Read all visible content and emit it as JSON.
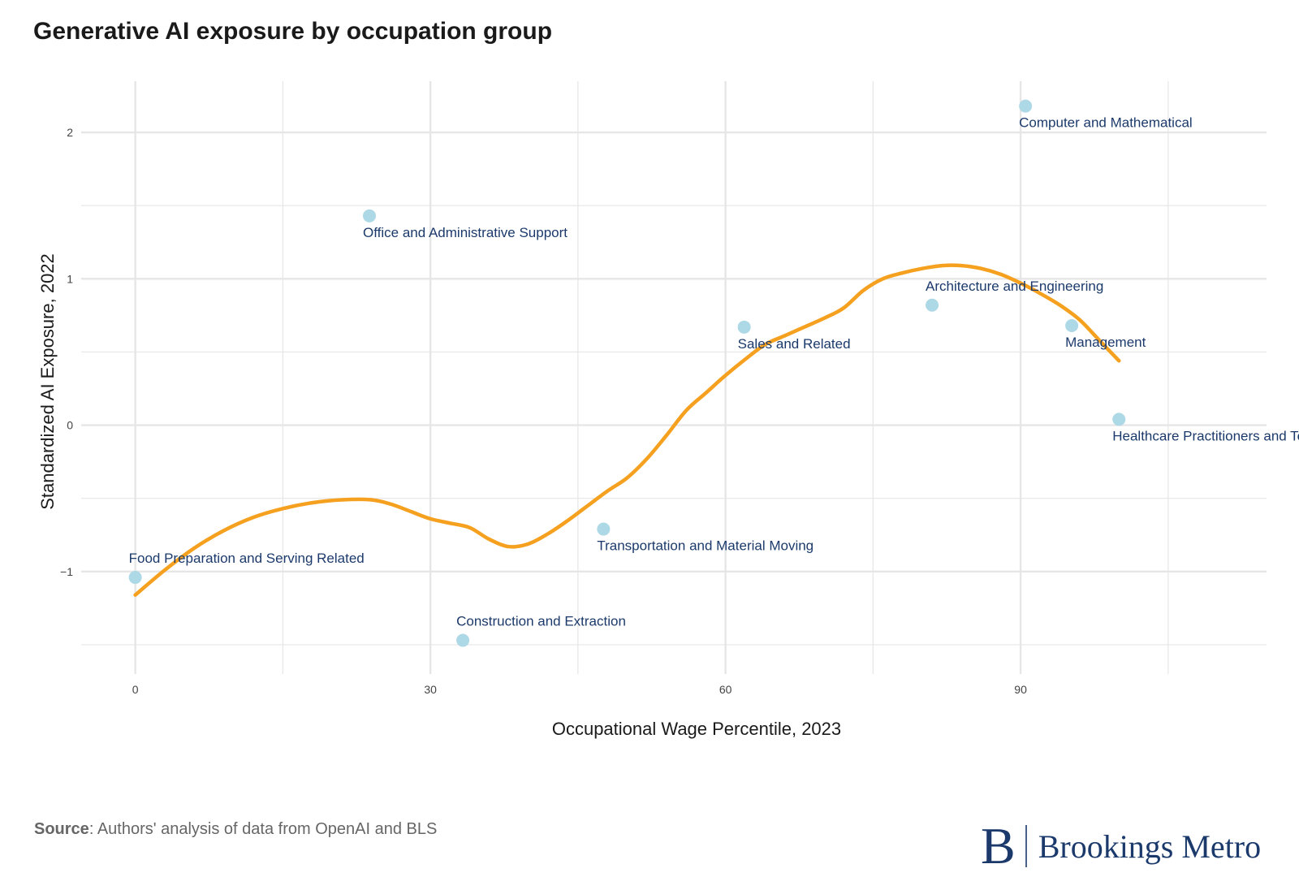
{
  "title": "Generative AI exposure by occupation group",
  "source_label": "Source",
  "source_text": ": Authors' analysis of data from OpenAI and BLS",
  "logo": {
    "mark": "B",
    "text": "Brookings Metro"
  },
  "colors": {
    "point": "#add8e6",
    "trend": "#f5a01e",
    "label": "#1b3a6b",
    "grid": "#e6e6e6",
    "tick": "#444444"
  },
  "chart_data": {
    "type": "scatter",
    "xlabel": "Occupational Wage Percentile, 2023",
    "ylabel": "Standardized AI Exposure, 2022",
    "xlim": [
      -5.5,
      115
    ],
    "ylim": [
      -1.7,
      2.35
    ],
    "xticks": [
      0,
      30,
      60,
      90
    ],
    "xtick_labels": [
      "0",
      "30",
      "60",
      "90"
    ],
    "yticks": [
      -1,
      0,
      1,
      2
    ],
    "ytick_labels": [
      "−1",
      "0",
      "1",
      "2"
    ],
    "grid": true,
    "points": [
      {
        "name": "Food Preparation and Serving Related",
        "x": 0,
        "y": -1.04
      },
      {
        "name": "Office and Administrative Support",
        "x": 23.8,
        "y": 1.43
      },
      {
        "name": "Construction and Extraction",
        "x": 33.3,
        "y": -1.47
      },
      {
        "name": "Transportation and Material Moving",
        "x": 47.6,
        "y": -0.71
      },
      {
        "name": "Sales and Related",
        "x": 61.9,
        "y": 0.67
      },
      {
        "name": "Architecture and Engineering",
        "x": 81,
        "y": 0.82
      },
      {
        "name": "Computer and Mathematical",
        "x": 90.5,
        "y": 2.18
      },
      {
        "name": "Management",
        "x": 95.2,
        "y": 0.68
      },
      {
        "name": "Healthcare Practitioners and Technical",
        "x": 100,
        "y": 0.04
      }
    ],
    "trend": {
      "x": [
        0,
        3,
        6,
        9,
        12,
        15,
        18,
        21,
        24,
        26,
        28,
        30,
        32,
        34,
        36,
        38,
        40,
        42,
        44,
        46,
        48,
        50,
        52,
        54,
        56,
        58,
        60,
        62,
        64,
        66,
        68,
        70,
        72,
        74,
        76,
        78,
        80,
        82,
        84,
        86,
        88,
        90,
        92,
        94,
        96,
        98,
        100
      ],
      "y": [
        -1.16,
        -0.99,
        -0.84,
        -0.72,
        -0.63,
        -0.57,
        -0.53,
        -0.51,
        -0.51,
        -0.54,
        -0.59,
        -0.64,
        -0.67,
        -0.7,
        -0.78,
        -0.83,
        -0.81,
        -0.74,
        -0.65,
        -0.55,
        -0.45,
        -0.36,
        -0.23,
        -0.07,
        0.1,
        0.22,
        0.34,
        0.45,
        0.55,
        0.61,
        0.67,
        0.73,
        0.8,
        0.92,
        1.0,
        1.04,
        1.07,
        1.09,
        1.09,
        1.07,
        1.03,
        0.97,
        0.9,
        0.82,
        0.72,
        0.58,
        0.44
      ]
    }
  }
}
